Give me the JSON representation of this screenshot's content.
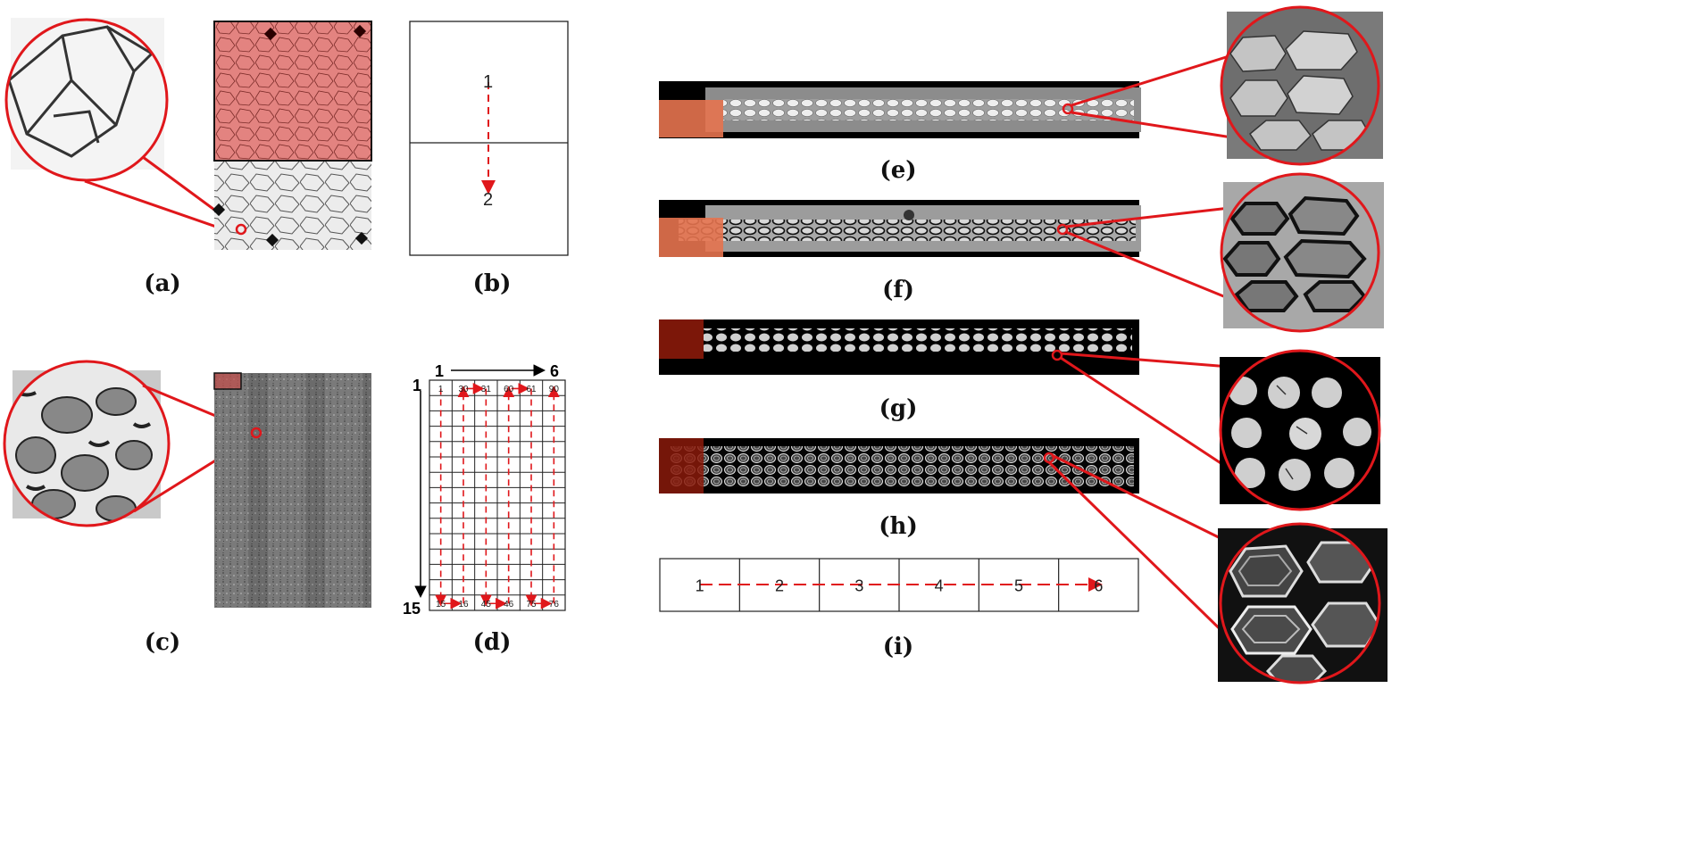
{
  "panel_labels": {
    "a": "(a)",
    "b": "(b)",
    "c": "(c)",
    "d": "(d)",
    "e": "(e)",
    "f": "(f)",
    "g": "(g)",
    "h": "(h)",
    "i": "(i)"
  },
  "panel_b": {
    "tile_numbers": [
      "1",
      "2"
    ]
  },
  "panel_d": {
    "col_start": "1",
    "col_end": "6",
    "row_start": "1",
    "row_end": "15",
    "top_numbers": [
      "1",
      "30",
      "31",
      "60",
      "61",
      "90"
    ],
    "bottom_numbers": [
      "15",
      "16",
      "45",
      "46",
      "75",
      "76"
    ]
  },
  "panel_i": {
    "tile_numbers": [
      "1",
      "2",
      "3",
      "4",
      "5",
      "6"
    ]
  },
  "colors": {
    "highlight_red": "#e0171b",
    "overlay_red": "#d9534f",
    "dark_overlay": "#8a1a0a"
  }
}
